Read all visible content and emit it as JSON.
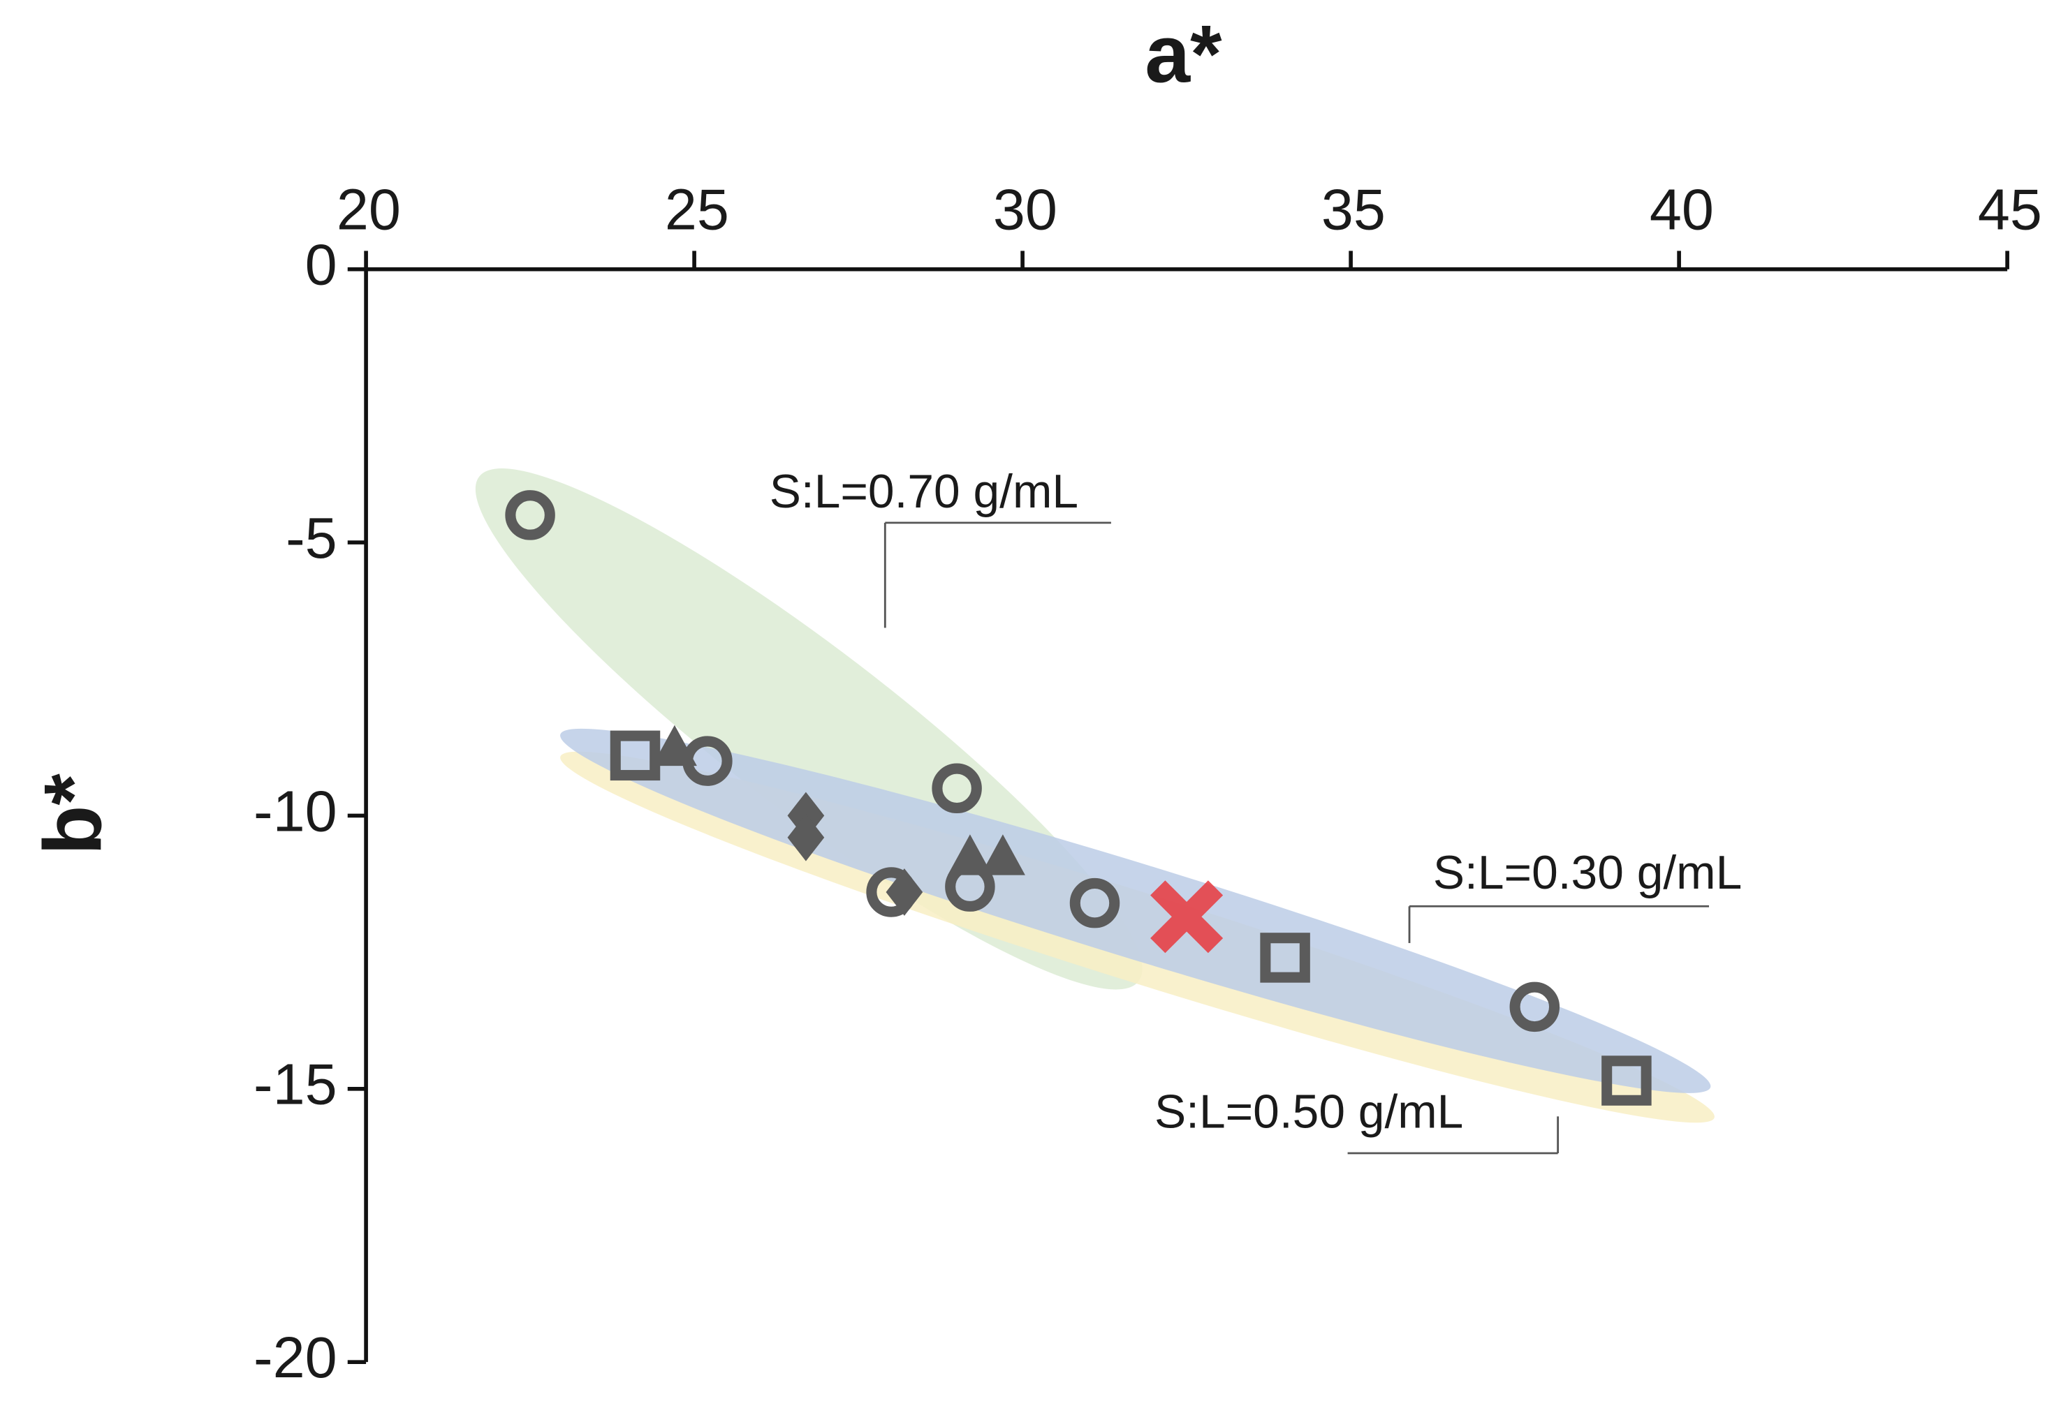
{
  "chart_data": {
    "type": "scatter",
    "xlabel": "a*",
    "ylabel": "b*",
    "xlim": [
      20,
      45
    ],
    "ylim": [
      -20,
      0
    ],
    "xticks": [
      20,
      25,
      30,
      35,
      40,
      45
    ],
    "yticks": [
      0,
      -5,
      -10,
      -15,
      -20
    ],
    "series": [
      {
        "marker": "circle",
        "color": "#5b5b5b",
        "x": [
          22.5,
          25.2,
          28.0,
          29.0,
          29.2,
          31.1,
          37.8
        ],
        "y": [
          -4.5,
          -9.0,
          -11.4,
          -9.5,
          -11.3,
          -11.6,
          -13.5
        ]
      },
      {
        "marker": "square",
        "color": "#5b5b5b",
        "x": [
          24.1,
          34.0,
          39.2
        ],
        "y": [
          -8.9,
          -12.6,
          -14.85
        ]
      },
      {
        "marker": "triangle",
        "color": "#5b5b5b",
        "x": [
          24.7,
          29.2,
          29.7
        ],
        "y": [
          -8.8,
          -10.8,
          -10.8
        ]
      },
      {
        "marker": "diamond",
        "color": "#5b5b5b",
        "x": [
          26.7,
          26.7,
          28.2
        ],
        "y": [
          -10.0,
          -10.4,
          -11.4
        ]
      },
      {
        "marker": "cross",
        "color": "#e8383d",
        "x": [
          32.5
        ],
        "y": [
          -11.85
        ]
      }
    ],
    "annotations": [
      {
        "text": "S:L=0.70 g/mL",
        "color": "#dcebd3"
      },
      {
        "text": "S:L=0.30 g/mL",
        "color": "#bccde6"
      },
      {
        "text": "S:L=0.50 g/mL",
        "color": "#f8eec4"
      }
    ]
  }
}
